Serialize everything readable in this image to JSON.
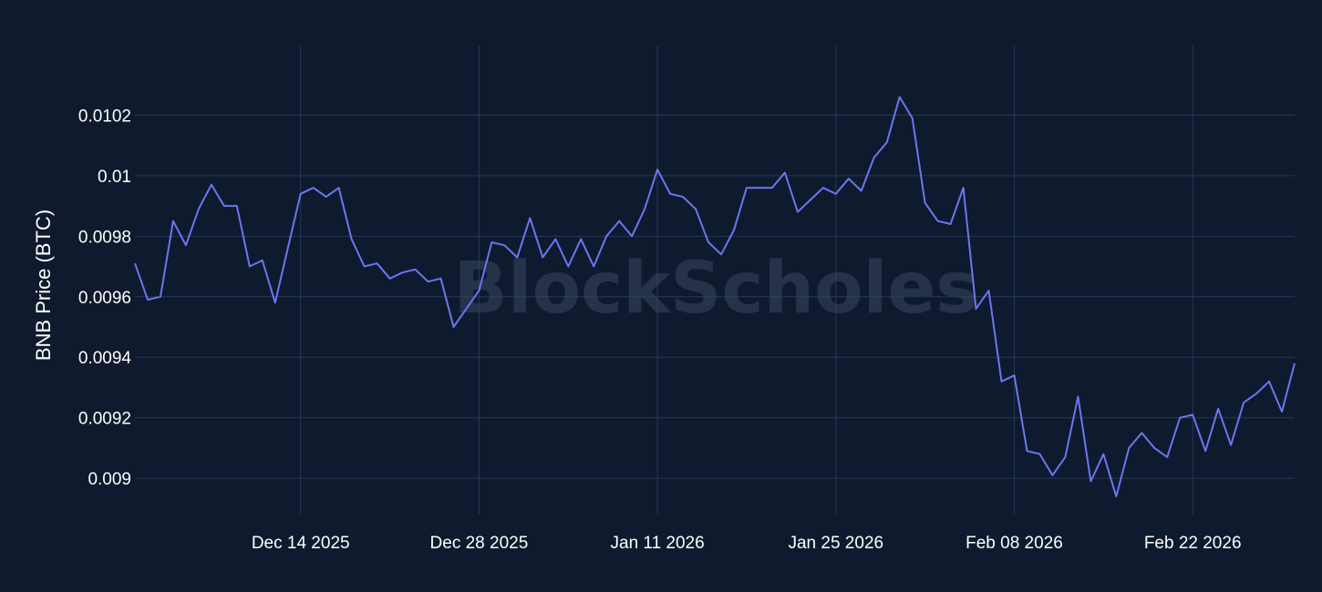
{
  "watermark": "BlockScholes",
  "chart_data": {
    "type": "line",
    "title": "",
    "xlabel": "",
    "ylabel": "BNB Price (BTC)",
    "xlim": [
      "2025-12-01",
      "2026-03-02"
    ],
    "ylim": [
      0.00888,
      0.01043
    ],
    "x_ticks": [
      {
        "date": "2025-12-14",
        "label": "Dec 14 2025"
      },
      {
        "date": "2025-12-28",
        "label": "Dec 28 2025"
      },
      {
        "date": "2026-01-11",
        "label": "Jan 11 2026"
      },
      {
        "date": "2026-01-25",
        "label": "Jan 25 2026"
      },
      {
        "date": "2026-02-08",
        "label": "Feb 08 2026"
      },
      {
        "date": "2026-02-22",
        "label": "Feb 22 2026"
      }
    ],
    "y_ticks": [
      {
        "value": 0.009,
        "label": "0.009"
      },
      {
        "value": 0.0092,
        "label": "0.0092"
      },
      {
        "value": 0.0094,
        "label": "0.0094"
      },
      {
        "value": 0.0096,
        "label": "0.0096"
      },
      {
        "value": 0.0098,
        "label": "0.0098"
      },
      {
        "value": 0.01,
        "label": "0.01"
      },
      {
        "value": 0.0102,
        "label": "0.0102"
      }
    ],
    "grid": true,
    "legend": "none",
    "line_color": "#6b76f0",
    "series": [
      {
        "x": [
          "2025-12-01",
          "2025-12-02",
          "2025-12-03",
          "2025-12-04",
          "2025-12-05",
          "2025-12-06",
          "2025-12-07",
          "2025-12-08",
          "2025-12-09",
          "2025-12-10",
          "2025-12-11",
          "2025-12-12",
          "2025-12-13",
          "2025-12-14",
          "2025-12-15",
          "2025-12-16",
          "2025-12-17",
          "2025-12-18",
          "2025-12-19",
          "2025-12-20",
          "2025-12-21",
          "2025-12-22",
          "2025-12-23",
          "2025-12-24",
          "2025-12-25",
          "2025-12-26",
          "2025-12-27",
          "2025-12-28",
          "2025-12-29",
          "2025-12-30",
          "2025-12-31",
          "2026-01-01",
          "2026-01-02",
          "2026-01-03",
          "2026-01-04",
          "2026-01-05",
          "2026-01-06",
          "2026-01-07",
          "2026-01-08",
          "2026-01-09",
          "2026-01-10",
          "2026-01-11",
          "2026-01-12",
          "2026-01-13",
          "2026-01-14",
          "2026-01-15",
          "2026-01-16",
          "2026-01-17",
          "2026-01-18",
          "2026-01-19",
          "2026-01-20",
          "2026-01-21",
          "2026-01-22",
          "2026-01-23",
          "2026-01-24",
          "2026-01-25",
          "2026-01-26",
          "2026-01-27",
          "2026-01-28",
          "2026-01-29",
          "2026-01-30",
          "2026-01-31",
          "2026-02-01",
          "2026-02-02",
          "2026-02-03",
          "2026-02-04",
          "2026-02-05",
          "2026-02-06",
          "2026-02-07",
          "2026-02-08",
          "2026-02-09",
          "2026-02-10",
          "2026-02-11",
          "2026-02-12",
          "2026-02-13",
          "2026-02-14",
          "2026-02-15",
          "2026-02-16",
          "2026-02-17",
          "2026-02-18",
          "2026-02-19",
          "2026-02-20",
          "2026-02-21",
          "2026-02-22",
          "2026-02-23",
          "2026-02-24",
          "2026-02-25",
          "2026-02-26",
          "2026-02-27",
          "2026-02-28",
          "2026-03-01",
          "2026-03-02"
        ],
        "values": [
          0.00971,
          0.00959,
          0.0096,
          0.00985,
          0.00977,
          0.00989,
          0.00997,
          0.0099,
          0.0099,
          0.0097,
          0.00972,
          0.00958,
          0.00976,
          0.00994,
          0.00996,
          0.00993,
          0.00996,
          0.00979,
          0.0097,
          0.00971,
          0.00966,
          0.00968,
          0.00969,
          0.00965,
          0.00966,
          0.0095,
          0.00956,
          0.00962,
          0.00978,
          0.00977,
          0.00973,
          0.00986,
          0.00973,
          0.00979,
          0.0097,
          0.00979,
          0.0097,
          0.0098,
          0.00985,
          0.0098,
          0.00989,
          0.01002,
          0.00994,
          0.00993,
          0.00989,
          0.00978,
          0.00974,
          0.00982,
          0.00996,
          0.00996,
          0.00996,
          0.01001,
          0.00988,
          0.00992,
          0.00996,
          0.00994,
          0.00999,
          0.00995,
          0.01006,
          0.01011,
          0.01026,
          0.01019,
          0.00991,
          0.00985,
          0.00984,
          0.00996,
          0.00956,
          0.00962,
          0.00932,
          0.00934,
          0.00909,
          0.00908,
          0.00901,
          0.00907,
          0.00927,
          0.00899,
          0.00908,
          0.00894,
          0.0091,
          0.00915,
          0.0091,
          0.00907,
          0.0092,
          0.00921,
          0.00909,
          0.00923,
          0.00911,
          0.00925,
          0.00928,
          0.00932,
          0.00922,
          0.00938
        ]
      }
    ]
  }
}
